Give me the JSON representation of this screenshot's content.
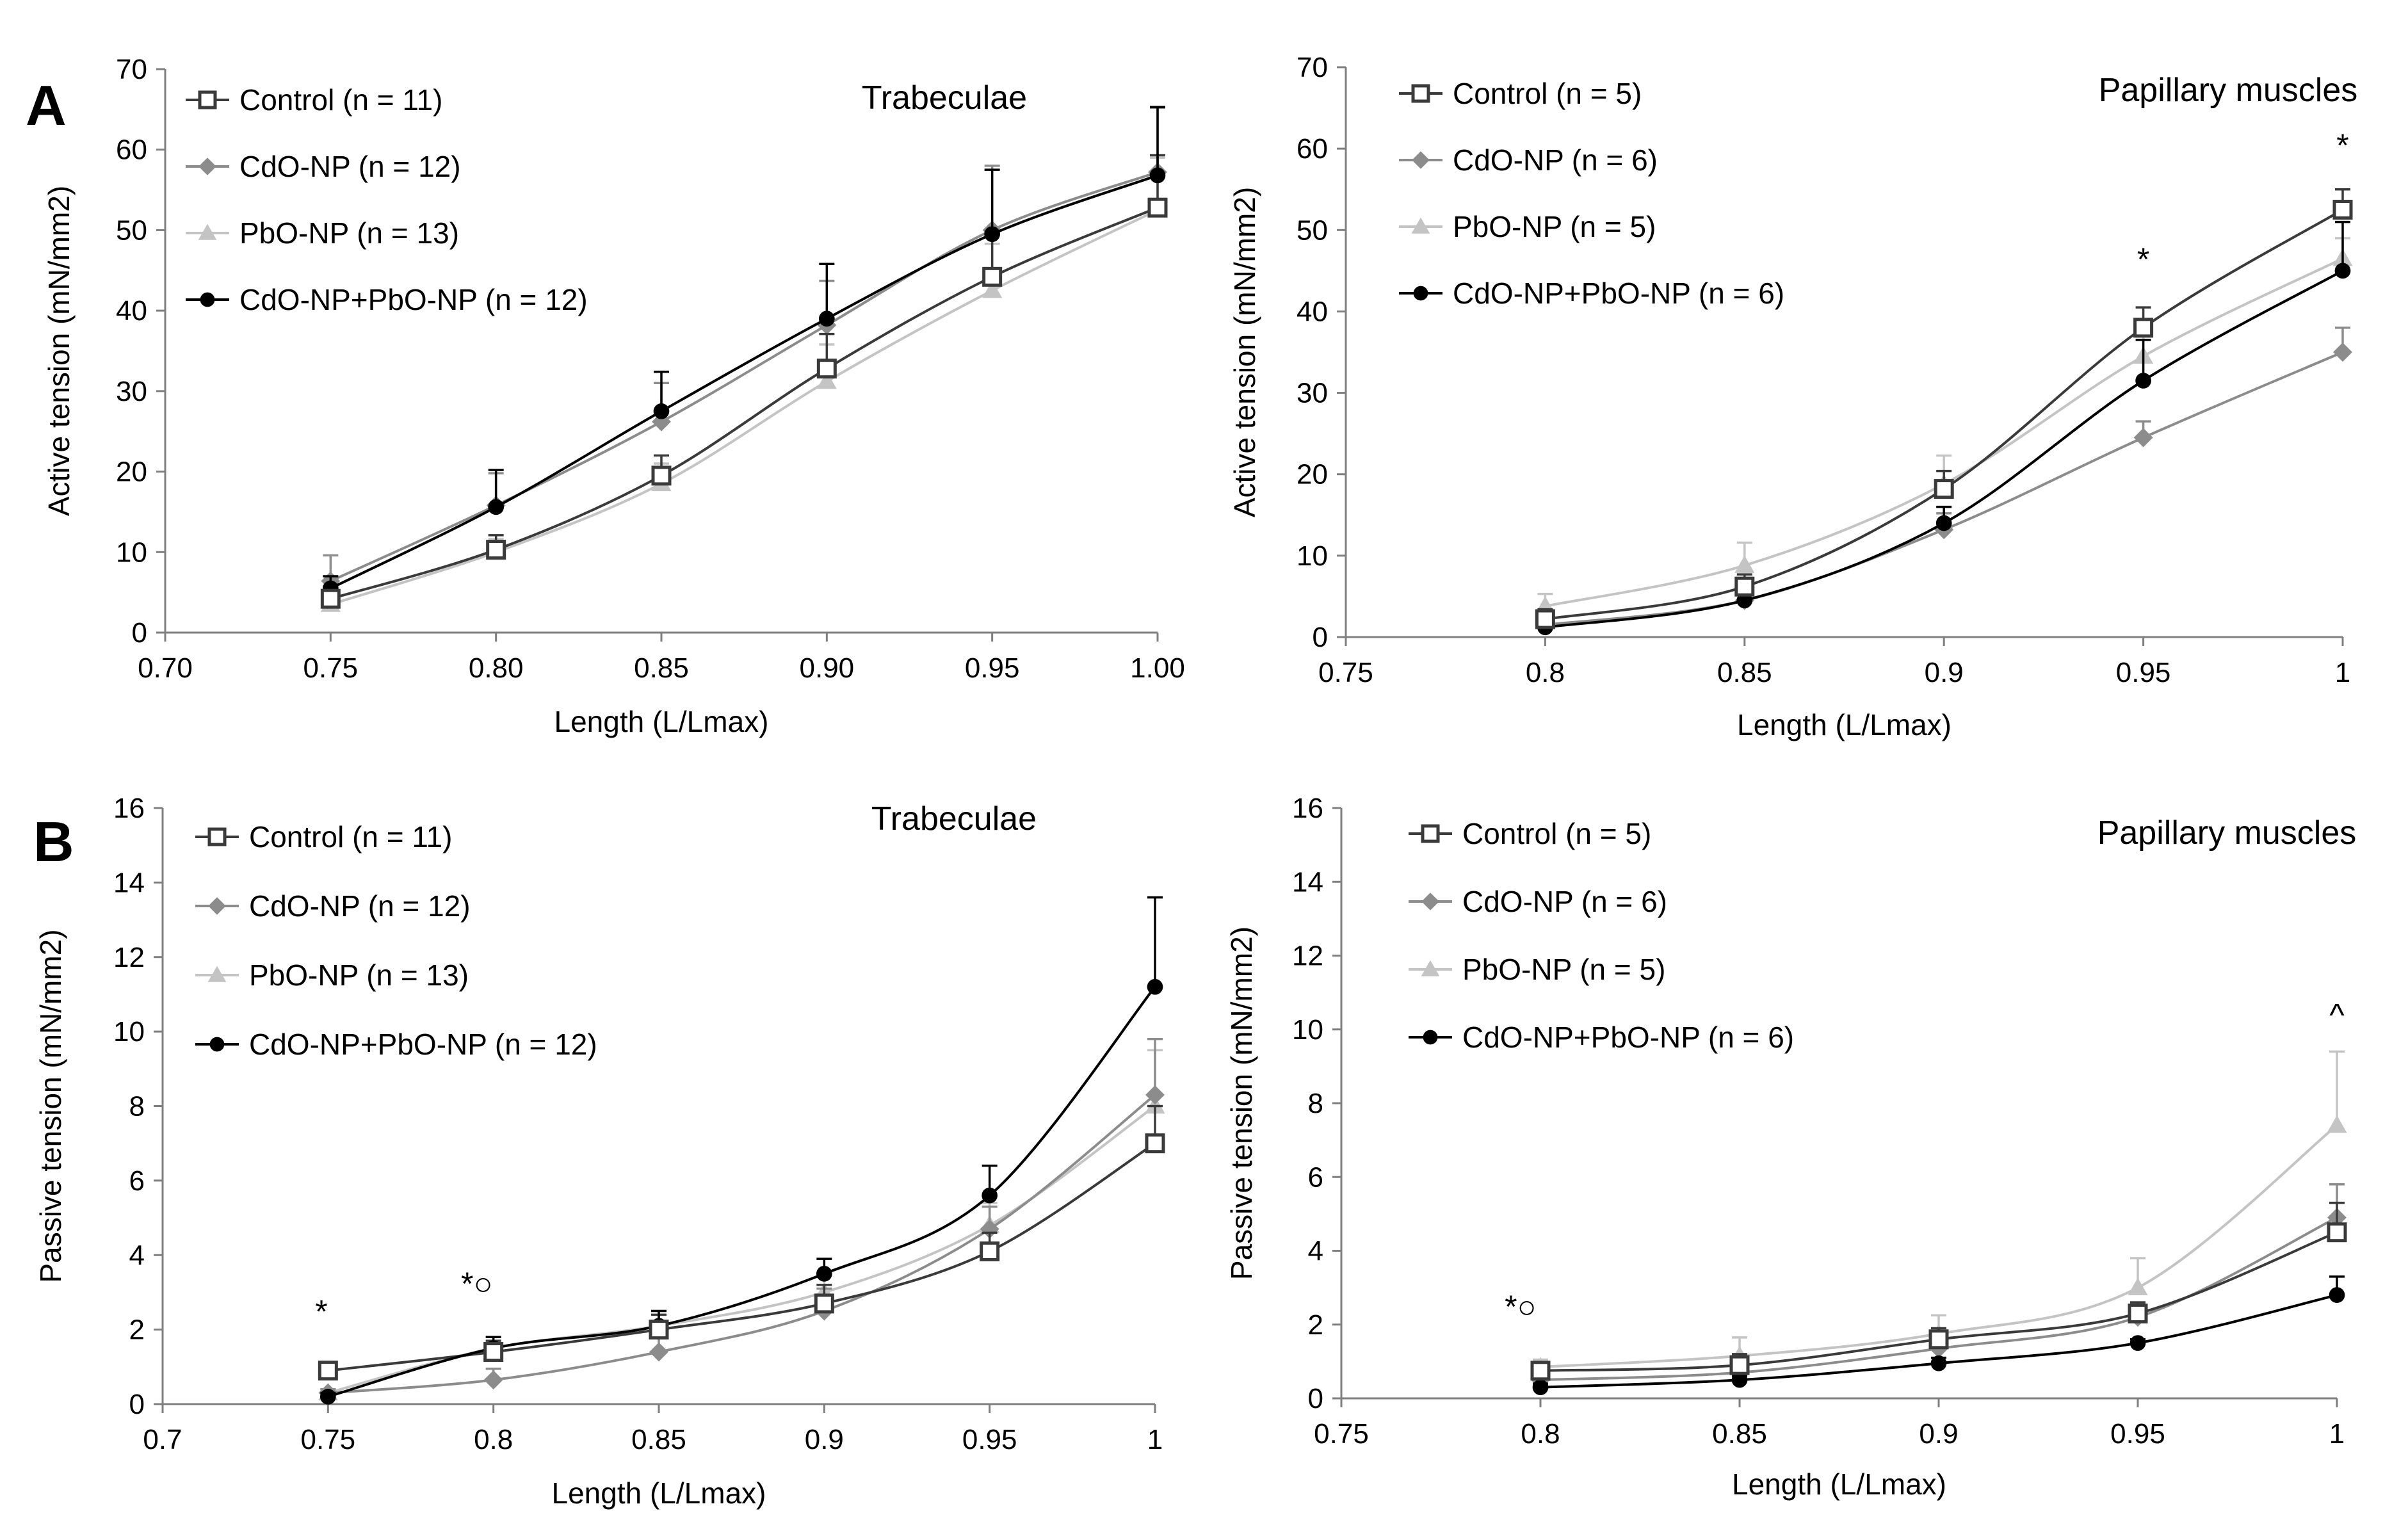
{
  "panel_labels": [
    "A",
    "B"
  ],
  "series_styles": [
    {
      "marker": "square-open",
      "color": "#3a3a3a",
      "fill": "#ffffff"
    },
    {
      "marker": "diamond",
      "color": "#8c8c8c",
      "fill": "#8c8c8c"
    },
    {
      "marker": "triangle",
      "color": "#c4c4c4",
      "fill": "#c4c4c4"
    },
    {
      "marker": "circle",
      "color": "#000000",
      "fill": "#000000"
    }
  ],
  "chart_data": [
    {
      "type": "line",
      "title": "Trabeculae",
      "xlabel": "Length (L/Lmax)",
      "ylabel": "Active tension (mN/mm2)",
      "xlim": [
        0.7,
        1.0
      ],
      "ylim": [
        0,
        70
      ],
      "xticks": [
        0.7,
        0.75,
        0.8,
        0.85,
        0.9,
        0.95,
        1.0
      ],
      "xtick_labels": [
        "0.70",
        "0.75",
        "0.80",
        "0.85",
        "0.90",
        "0.95",
        "1.00"
      ],
      "yticks": [
        0,
        10,
        20,
        30,
        40,
        50,
        60,
        70
      ],
      "ytick_labels": [
        "0",
        "10",
        "20",
        "30",
        "40",
        "50",
        "60",
        "70"
      ],
      "grid": false,
      "legend": "top-left",
      "x": [
        0.75,
        0.8,
        0.85,
        0.9,
        0.95,
        1.0
      ],
      "series": [
        {
          "name": "Control (n = 11)",
          "values": [
            4.2,
            10.3,
            19.5,
            32.8,
            44.2,
            52.8
          ],
          "err": [
            1.5,
            1.8,
            2.5,
            4.3,
            5.6,
            6.5
          ]
        },
        {
          "name": "CdO-NP (n = 12)",
          "values": [
            6.4,
            15.8,
            26.2,
            38.2,
            50.0,
            57.2
          ],
          "err": [
            3.2,
            4.0,
            4.8,
            5.5,
            8.0,
            8.0
          ]
        },
        {
          "name": "PbO-NP (n = 13)",
          "values": [
            3.5,
            10.0,
            18.5,
            31.2,
            42.5,
            52.5
          ],
          "err": [
            1.2,
            1.6,
            2.5,
            4.6,
            5.8,
            6.5
          ]
        },
        {
          "name": "CdO-NP+PbO-NP (n = 12)",
          "values": [
            5.5,
            15.6,
            27.5,
            39.0,
            49.5,
            56.8
          ],
          "err": [
            1.5,
            4.6,
            4.9,
            6.8,
            8.0,
            8.5
          ]
        }
      ],
      "annotations": []
    },
    {
      "type": "line",
      "title": "Papillary muscles",
      "xlabel": "Length (L/Lmax)",
      "ylabel": "Active tension (mN/mm2)",
      "xlim": [
        0.75,
        1.0
      ],
      "ylim": [
        0,
        70
      ],
      "xticks": [
        0.75,
        0.8,
        0.85,
        0.9,
        0.95,
        1
      ],
      "xtick_labels": [
        "0.75",
        "0.8",
        "0.85",
        "0.9",
        "0.95",
        "1"
      ],
      "yticks": [
        0,
        10,
        20,
        30,
        40,
        50,
        60,
        70
      ],
      "ytick_labels": [
        "0",
        "10",
        "20",
        "30",
        "40",
        "50",
        "60",
        "70"
      ],
      "grid": false,
      "legend": "top-left",
      "x": [
        0.8,
        0.85,
        0.9,
        0.95,
        1.0
      ],
      "series": [
        {
          "name": "Control (n = 5)",
          "values": [
            2.2,
            6.2,
            18.2,
            38.0,
            52.5
          ],
          "err": [
            1.2,
            1.5,
            2.2,
            2.5,
            2.5
          ]
        },
        {
          "name": "CdO-NP (n = 6)",
          "values": [
            1.5,
            4.5,
            13.2,
            24.5,
            35.0
          ],
          "err": [
            1.0,
            1.2,
            2.0,
            2.0,
            3.0
          ]
        },
        {
          "name": "PbO-NP (n = 5)",
          "values": [
            3.8,
            8.8,
            18.8,
            34.5,
            46.5
          ],
          "err": [
            1.5,
            2.8,
            3.5,
            2.5,
            2.5
          ]
        },
        {
          "name": "CdO-NP+PbO-NP (n = 6)",
          "values": [
            1.2,
            4.5,
            14.0,
            31.5,
            45.0
          ],
          "err": [
            0.8,
            1.0,
            2.0,
            5.0,
            6.0
          ]
        }
      ],
      "annotations": [
        {
          "x": 0.95,
          "y": 46.5,
          "text": "*"
        },
        {
          "x": 1.0,
          "y": 60.5,
          "text": "*"
        }
      ]
    },
    {
      "type": "line",
      "title": "Trabeculae",
      "xlabel": "Length (L/Lmax)",
      "ylabel": "Passive tension (mN/mm2)",
      "xlim": [
        0.7,
        1.0
      ],
      "ylim": [
        0,
        16
      ],
      "xticks": [
        0.7,
        0.75,
        0.8,
        0.85,
        0.9,
        0.95,
        1
      ],
      "xtick_labels": [
        "0.7",
        "0.75",
        "0.8",
        "0.85",
        "0.9",
        "0.95",
        "1"
      ],
      "yticks": [
        0,
        2,
        4,
        6,
        8,
        10,
        12,
        14,
        16
      ],
      "ytick_labels": [
        "0",
        "2",
        "4",
        "6",
        "8",
        "10",
        "12",
        "14",
        "16"
      ],
      "grid": false,
      "legend": "top-left",
      "x": [
        0.75,
        0.8,
        0.85,
        0.9,
        0.95,
        1.0
      ],
      "series": [
        {
          "name": "Control (n = 11)",
          "values": [
            0.9,
            1.4,
            2.0,
            2.7,
            4.1,
            7.0
          ],
          "err": [
            0.2,
            0.3,
            0.4,
            0.5,
            0.5,
            1.0
          ]
        },
        {
          "name": "CdO-NP (n = 12)",
          "values": [
            0.3,
            0.65,
            1.4,
            2.5,
            4.7,
            8.3
          ],
          "err": [
            0.1,
            0.3,
            0.4,
            0.6,
            0.6,
            1.5
          ]
        },
        {
          "name": "PbO-NP (n = 13)",
          "values": [
            0.3,
            1.5,
            2.1,
            3.0,
            4.8,
            8.0
          ],
          "err": [
            0.1,
            0.3,
            0.4,
            0.5,
            0.6,
            1.5
          ]
        },
        {
          "name": "CdO-NP+PbO-NP (n = 12)",
          "values": [
            0.2,
            1.5,
            2.1,
            3.5,
            5.6,
            11.2
          ],
          "err": [
            0.1,
            0.3,
            0.4,
            0.4,
            0.8,
            2.4
          ]
        }
      ],
      "annotations": [
        {
          "x": 0.748,
          "y": 2.5,
          "text": "*"
        },
        {
          "x": 0.795,
          "y": 3.25,
          "text": "*○"
        }
      ]
    },
    {
      "type": "line",
      "title": "Papillary muscles",
      "xlabel": "Length (L/Lmax)",
      "ylabel": "Passive tension (mN/mm2)",
      "xlim": [
        0.75,
        1.0
      ],
      "ylim": [
        0,
        16
      ],
      "xticks": [
        0.75,
        0.8,
        0.85,
        0.9,
        0.95,
        1
      ],
      "xtick_labels": [
        "0.75",
        "0.8",
        "0.85",
        "0.9",
        "0.95",
        "1"
      ],
      "yticks": [
        0,
        2,
        4,
        6,
        8,
        10,
        12,
        14,
        16
      ],
      "ytick_labels": [
        "0",
        "2",
        "4",
        "6",
        "8",
        "10",
        "12",
        "14",
        "16"
      ],
      "grid": false,
      "legend": "top-left",
      "x": [
        0.8,
        0.85,
        0.9,
        0.95,
        1.0
      ],
      "series": [
        {
          "name": "Control (n = 5)",
          "values": [
            0.75,
            0.9,
            1.6,
            2.3,
            4.5
          ],
          "err": [
            0.2,
            0.3,
            0.3,
            0.3,
            0.8
          ]
        },
        {
          "name": "CdO-NP (n = 6)",
          "values": [
            0.5,
            0.7,
            1.35,
            2.2,
            4.9
          ],
          "err": [
            0.2,
            0.2,
            0.3,
            0.4,
            0.9
          ]
        },
        {
          "name": "PbO-NP (n = 5)",
          "values": [
            0.85,
            1.15,
            1.75,
            3.0,
            7.4
          ],
          "err": [
            0.2,
            0.5,
            0.5,
            0.8,
            2.0
          ]
        },
        {
          "name": "CdO-NP+PbO-NP (n = 6)",
          "values": [
            0.3,
            0.5,
            0.95,
            1.5,
            2.8
          ],
          "err": [
            0.1,
            0.1,
            0.15,
            0.1,
            0.5
          ]
        }
      ],
      "annotations": [
        {
          "x": 0.795,
          "y": 2.5,
          "text": "*○"
        },
        {
          "x": 1.0,
          "y": 10.4,
          "text": "^"
        }
      ]
    }
  ]
}
